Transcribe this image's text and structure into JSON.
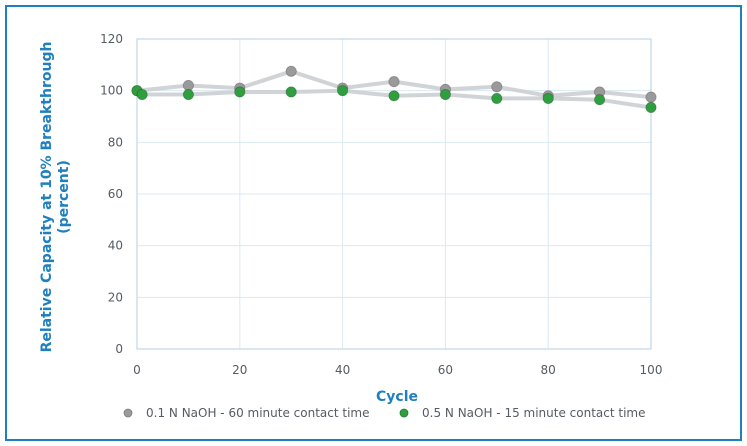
{
  "chart_data": {
    "type": "line",
    "title": "",
    "xlabel": "Cycle",
    "ylabel": [
      "Relative Capacity at 10% Breakthrough",
      "(percent)"
    ],
    "xlim": [
      0,
      100
    ],
    "ylim": [
      0,
      120
    ],
    "x_ticks": [
      0,
      20,
      40,
      60,
      80,
      100
    ],
    "y_ticks": [
      0,
      20,
      40,
      60,
      80,
      100,
      120
    ],
    "grid": true,
    "legend_position": "bottom",
    "colors": {
      "frame": "#1f7fbf",
      "grid": "#dce9f3",
      "accent": "#1f7fbf"
    },
    "series": [
      {
        "name": "0.1 N NaOH - 60 minute contact time",
        "color": "#9a9a9a",
        "x": [
          0,
          10,
          20,
          30,
          40,
          50,
          60,
          70,
          80,
          90,
          100
        ],
        "y": [
          100,
          102,
          101,
          107.5,
          101,
          103.5,
          100.5,
          101.5,
          98,
          99.5,
          97.5
        ]
      },
      {
        "name": "0.5 N NaOH - 15 minute contact time",
        "color": "#2e9e3e",
        "x": [
          0,
          1,
          10,
          20,
          30,
          40,
          50,
          60,
          70,
          80,
          90,
          100
        ],
        "y": [
          100,
          98.5,
          98.5,
          99.5,
          99.5,
          100,
          98,
          98.5,
          97,
          97,
          96.5,
          93.5
        ]
      }
    ]
  }
}
